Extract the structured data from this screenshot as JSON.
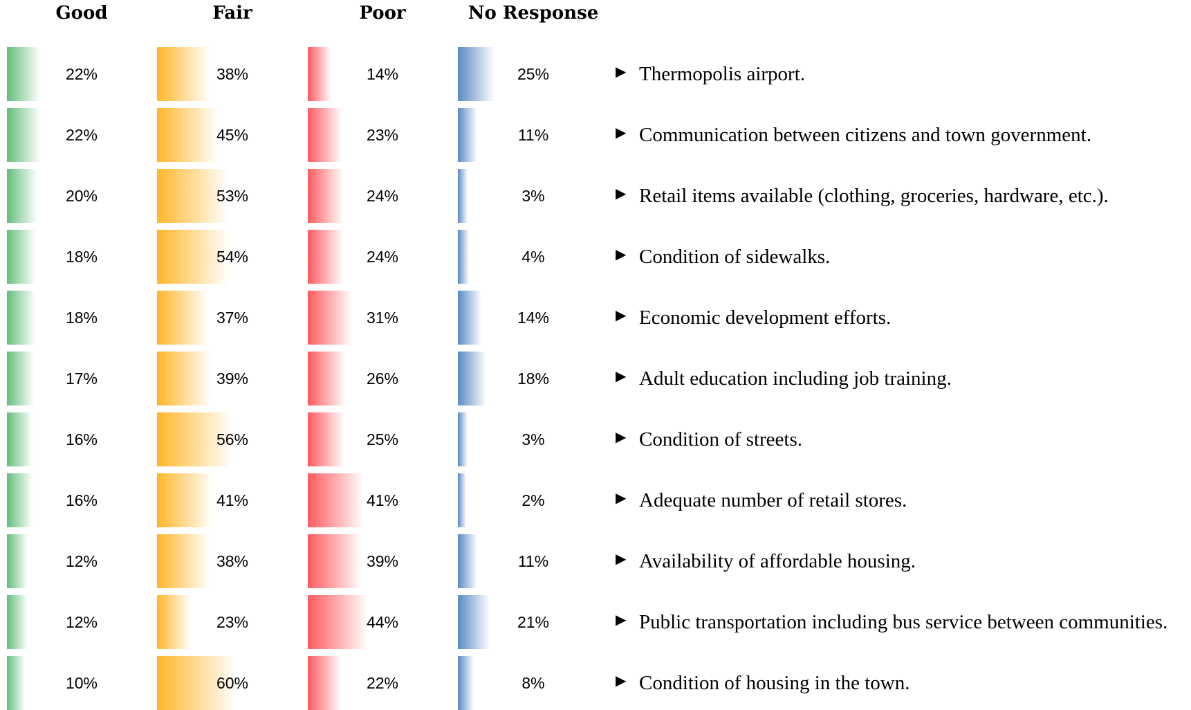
{
  "chart_data": {
    "type": "bar",
    "categories": [
      "Thermopolis airport.",
      "Communication between citizens and town government.",
      "Retail items available (clothing, groceries, hardware, etc.).",
      "Condition of sidewalks.",
      "Economic development efforts.",
      "Adult education including job training.",
      "Condition of streets.",
      "Adequate number of retail stores.",
      "Availability of affordable housing.",
      "Public transportation including bus service between communities.",
      "Condition of housing in the town."
    ],
    "series": [
      {
        "name": "Good",
        "color": "#63be7b",
        "values": [
          22,
          22,
          20,
          18,
          18,
          17,
          16,
          16,
          12,
          12,
          10
        ],
        "value_labels": [
          "22%",
          "22%",
          "20%",
          "18%",
          "18%",
          "17%",
          "16%",
          "16%",
          "12%",
          "12%",
          "10%"
        ]
      },
      {
        "name": "Fair",
        "color": "#ffb628",
        "values": [
          38,
          45,
          53,
          54,
          37,
          39,
          56,
          41,
          38,
          23,
          60
        ],
        "value_labels": [
          "38%",
          "45%",
          "53%",
          "54%",
          "37%",
          "39%",
          "56%",
          "41%",
          "38%",
          "23%",
          "60%"
        ]
      },
      {
        "name": "Poor",
        "color": "#ff5a5f",
        "values": [
          14,
          23,
          24,
          24,
          31,
          26,
          25,
          41,
          39,
          44,
          22
        ],
        "value_labels": [
          "14%",
          "23%",
          "24%",
          "24%",
          "31%",
          "26%",
          "25%",
          "41%",
          "39%",
          "44%",
          "22%"
        ]
      },
      {
        "name": "No Response",
        "color": "#5a8ac6",
        "values": [
          25,
          11,
          3,
          4,
          14,
          18,
          3,
          2,
          11,
          21,
          8
        ],
        "value_labels": [
          "25%",
          "11%",
          "3%",
          "4%",
          "14%",
          "18%",
          "3%",
          "2%",
          "11%",
          "21%",
          "8%"
        ]
      }
    ]
  }
}
